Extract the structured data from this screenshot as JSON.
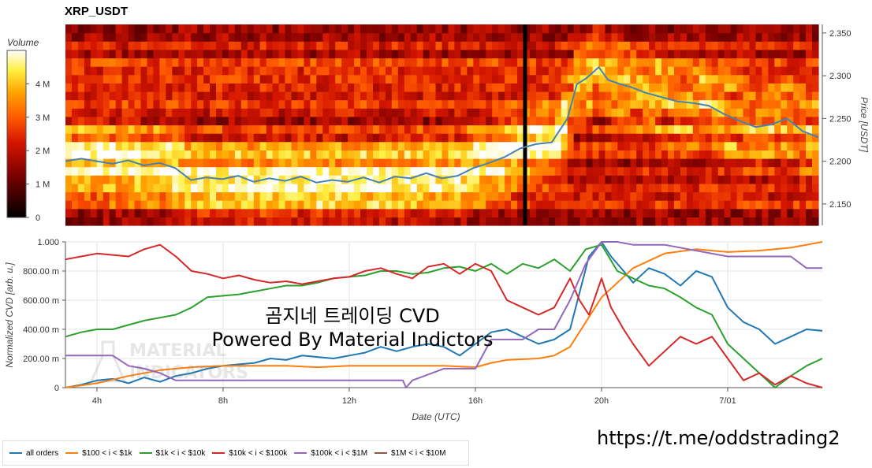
{
  "title": "XRP_USDT",
  "overlay_title": "곰지네 트레이딩 CVD",
  "overlay_subtitle": "Powered By Material Indictors",
  "watermark": "MATERIAL INDICATORS",
  "url_text": "https://t.me/oddstrading2",
  "colors": {
    "all_orders": "#1f77b4",
    "r100_1k": "#ff7f0e",
    "r1k_10k": "#2ca02c",
    "r10k_100k": "#d62728",
    "r100k_1m": "#9467bd",
    "r1m_10m": "#8c564b"
  },
  "chart_data": [
    {
      "type": "heatmap",
      "title": "XRP_USDT",
      "ylabel": "Price [USDT]",
      "ylim": [
        2.125,
        2.36
      ],
      "y_ticks": [
        "2.350",
        "2.300",
        "2.250",
        "2.200",
        "2.150"
      ],
      "y_tick_values": [
        2.35,
        2.3,
        2.25,
        2.2,
        2.15
      ],
      "colorbar": {
        "label": "Volume",
        "ticks": [
          "4 M",
          "3 M",
          "2 M",
          "1 M",
          "0"
        ],
        "tick_values": [
          4,
          3,
          2,
          1,
          0
        ],
        "range": [
          0,
          5
        ]
      },
      "x_range_hours": [
        3,
        27
      ],
      "gap_hour": 17.65,
      "price_line": [
        [
          3.0,
          2.2
        ],
        [
          3.5,
          2.203
        ],
        [
          4.0,
          2.2
        ],
        [
          4.5,
          2.197
        ],
        [
          5.0,
          2.201
        ],
        [
          5.5,
          2.195
        ],
        [
          6.0,
          2.198
        ],
        [
          6.5,
          2.192
        ],
        [
          7.0,
          2.178
        ],
        [
          7.5,
          2.181
        ],
        [
          8.0,
          2.179
        ],
        [
          8.5,
          2.183
        ],
        [
          9.0,
          2.176
        ],
        [
          9.5,
          2.18
        ],
        [
          10.0,
          2.177
        ],
        [
          10.5,
          2.182
        ],
        [
          11.0,
          2.175
        ],
        [
          11.5,
          2.178
        ],
        [
          12.0,
          2.176
        ],
        [
          12.5,
          2.181
        ],
        [
          13.0,
          2.175
        ],
        [
          13.5,
          2.182
        ],
        [
          14.0,
          2.18
        ],
        [
          14.5,
          2.186
        ],
        [
          15.0,
          2.18
        ],
        [
          15.5,
          2.183
        ],
        [
          16.0,
          2.192
        ],
        [
          16.5,
          2.198
        ],
        [
          17.0,
          2.205
        ],
        [
          17.5,
          2.215
        ],
        [
          18.0,
          2.22
        ],
        [
          18.5,
          2.222
        ],
        [
          19.0,
          2.25
        ],
        [
          19.3,
          2.29
        ],
        [
          19.6,
          2.297
        ],
        [
          20.0,
          2.31
        ],
        [
          20.3,
          2.295
        ],
        [
          20.7,
          2.29
        ],
        [
          21.0,
          2.287
        ],
        [
          21.5,
          2.28
        ],
        [
          22.0,
          2.275
        ],
        [
          22.5,
          2.27
        ],
        [
          23.0,
          2.268
        ],
        [
          23.5,
          2.265
        ],
        [
          24.0,
          2.255
        ],
        [
          24.5,
          2.247
        ],
        [
          25.0,
          2.24
        ],
        [
          25.5,
          2.243
        ],
        [
          26.0,
          2.25
        ],
        [
          26.5,
          2.235
        ],
        [
          27.0,
          2.228
        ]
      ],
      "note_units": "price in USDT, x in hours UTC"
    },
    {
      "type": "line",
      "xlabel": "Date (UTC)",
      "ylabel": "Normalized CVD [arb. u.]",
      "ylim": [
        0,
        1
      ],
      "y_ticks": [
        "1.000",
        "800.00 m",
        "600.00 m",
        "400.00 m",
        "200.00 m",
        "0"
      ],
      "y_tick_values": [
        1,
        0.8,
        0.6,
        0.4,
        0.2,
        0
      ],
      "x_ticks": [
        "4h",
        "8h",
        "12h",
        "16h",
        "20h",
        "7/01"
      ],
      "x_tick_values": [
        4,
        8,
        12,
        16,
        20,
        24
      ],
      "x_range": [
        3,
        27
      ],
      "grid": true,
      "legend_position": "bottom-left",
      "series": [
        {
          "name": "all orders",
          "color_key": "all_orders",
          "points": [
            [
              3,
              0.0
            ],
            [
              3.5,
              0.02
            ],
            [
              4,
              0.05
            ],
            [
              4.5,
              0.06
            ],
            [
              5,
              0.03
            ],
            [
              5.5,
              0.07
            ],
            [
              6,
              0.04
            ],
            [
              6.5,
              0.08
            ],
            [
              7,
              0.1
            ],
            [
              7.5,
              0.13
            ],
            [
              8,
              0.15
            ],
            [
              8.5,
              0.16
            ],
            [
              9,
              0.17
            ],
            [
              9.5,
              0.2
            ],
            [
              10,
              0.19
            ],
            [
              10.5,
              0.22
            ],
            [
              11,
              0.21
            ],
            [
              11.5,
              0.2
            ],
            [
              12,
              0.22
            ],
            [
              12.5,
              0.24
            ],
            [
              13,
              0.28
            ],
            [
              13.5,
              0.25
            ],
            [
              14,
              0.28
            ],
            [
              14.5,
              0.3
            ],
            [
              15,
              0.28
            ],
            [
              15.5,
              0.22
            ],
            [
              16,
              0.3
            ],
            [
              16.5,
              0.38
            ],
            [
              17,
              0.4
            ],
            [
              17.5,
              0.35
            ],
            [
              18,
              0.3
            ],
            [
              18.5,
              0.33
            ],
            [
              19,
              0.4
            ],
            [
              19.3,
              0.65
            ],
            [
              19.6,
              0.9
            ],
            [
              20,
              1.0
            ],
            [
              20.3,
              0.9
            ],
            [
              20.7,
              0.8
            ],
            [
              21,
              0.72
            ],
            [
              21.5,
              0.82
            ],
            [
              22,
              0.78
            ],
            [
              22.5,
              0.7
            ],
            [
              23,
              0.8
            ],
            [
              23.5,
              0.76
            ],
            [
              24,
              0.55
            ],
            [
              24.5,
              0.45
            ],
            [
              25,
              0.4
            ],
            [
              25.5,
              0.3
            ],
            [
              26,
              0.35
            ],
            [
              26.5,
              0.4
            ],
            [
              27,
              0.39
            ]
          ]
        },
        {
          "name": "$100 < i < $1k",
          "color_key": "r100_1k",
          "points": [
            [
              3,
              0.0
            ],
            [
              4,
              0.03
            ],
            [
              5,
              0.08
            ],
            [
              6,
              0.12
            ],
            [
              7,
              0.14
            ],
            [
              8,
              0.15
            ],
            [
              9,
              0.15
            ],
            [
              10,
              0.15
            ],
            [
              11,
              0.14
            ],
            [
              12,
              0.15
            ],
            [
              13,
              0.15
            ],
            [
              14,
              0.15
            ],
            [
              15,
              0.15
            ],
            [
              16,
              0.14
            ],
            [
              16.5,
              0.17
            ],
            [
              17,
              0.19
            ],
            [
              18,
              0.2
            ],
            [
              18.5,
              0.22
            ],
            [
              19,
              0.28
            ],
            [
              19.5,
              0.45
            ],
            [
              20,
              0.62
            ],
            [
              20.5,
              0.72
            ],
            [
              21,
              0.82
            ],
            [
              22,
              0.92
            ],
            [
              23,
              0.95
            ],
            [
              24,
              0.93
            ],
            [
              25,
              0.94
            ],
            [
              26,
              0.96
            ],
            [
              27,
              1.0
            ]
          ]
        },
        {
          "name": "$1k < i < $10k",
          "color_key": "r1k_10k",
          "points": [
            [
              3,
              0.35
            ],
            [
              3.5,
              0.38
            ],
            [
              4,
              0.4
            ],
            [
              4.5,
              0.4
            ],
            [
              5,
              0.43
            ],
            [
              5.5,
              0.46
            ],
            [
              6,
              0.48
            ],
            [
              6.5,
              0.5
            ],
            [
              7,
              0.55
            ],
            [
              7.5,
              0.62
            ],
            [
              8,
              0.63
            ],
            [
              8.5,
              0.64
            ],
            [
              9,
              0.66
            ],
            [
              9.5,
              0.68
            ],
            [
              10,
              0.7
            ],
            [
              10.5,
              0.7
            ],
            [
              11,
              0.72
            ],
            [
              11.5,
              0.75
            ],
            [
              12,
              0.76
            ],
            [
              12.5,
              0.77
            ],
            [
              13,
              0.8
            ],
            [
              13.5,
              0.8
            ],
            [
              14,
              0.78
            ],
            [
              14.5,
              0.79
            ],
            [
              15,
              0.82
            ],
            [
              15.5,
              0.83
            ],
            [
              16,
              0.8
            ],
            [
              16.5,
              0.85
            ],
            [
              17,
              0.78
            ],
            [
              17.5,
              0.85
            ],
            [
              18,
              0.82
            ],
            [
              18.5,
              0.88
            ],
            [
              19,
              0.8
            ],
            [
              19.5,
              0.95
            ],
            [
              20,
              0.98
            ],
            [
              20.5,
              0.8
            ],
            [
              21,
              0.75
            ],
            [
              21.5,
              0.7
            ],
            [
              22,
              0.68
            ],
            [
              22.5,
              0.62
            ],
            [
              23,
              0.55
            ],
            [
              23.5,
              0.5
            ],
            [
              24,
              0.3
            ],
            [
              24.5,
              0.2
            ],
            [
              25,
              0.1
            ],
            [
              25.5,
              0.0
            ],
            [
              26,
              0.08
            ],
            [
              26.5,
              0.15
            ],
            [
              27,
              0.2
            ]
          ]
        },
        {
          "name": "$10k < i < $100k",
          "color_key": "r10k_100k",
          "points": [
            [
              3,
              0.88
            ],
            [
              3.5,
              0.9
            ],
            [
              4,
              0.92
            ],
            [
              4.5,
              0.91
            ],
            [
              5,
              0.9
            ],
            [
              5.5,
              0.95
            ],
            [
              6,
              0.98
            ],
            [
              6.5,
              0.9
            ],
            [
              7,
              0.8
            ],
            [
              7.5,
              0.78
            ],
            [
              8,
              0.75
            ],
            [
              8.5,
              0.77
            ],
            [
              9,
              0.74
            ],
            [
              9.5,
              0.72
            ],
            [
              10,
              0.73
            ],
            [
              10.5,
              0.71
            ],
            [
              11,
              0.73
            ],
            [
              11.5,
              0.75
            ],
            [
              12,
              0.76
            ],
            [
              12.5,
              0.8
            ],
            [
              13,
              0.82
            ],
            [
              13.5,
              0.78
            ],
            [
              14,
              0.75
            ],
            [
              14.5,
              0.83
            ],
            [
              15,
              0.85
            ],
            [
              15.5,
              0.78
            ],
            [
              16,
              0.85
            ],
            [
              16.5,
              0.8
            ],
            [
              17,
              0.6
            ],
            [
              17.5,
              0.55
            ],
            [
              18,
              0.5
            ],
            [
              18.5,
              0.55
            ],
            [
              19,
              0.75
            ],
            [
              19.3,
              0.6
            ],
            [
              19.6,
              0.5
            ],
            [
              20,
              0.75
            ],
            [
              20.3,
              0.55
            ],
            [
              20.7,
              0.4
            ],
            [
              21,
              0.3
            ],
            [
              21.5,
              0.15
            ],
            [
              22,
              0.25
            ],
            [
              22.5,
              0.35
            ],
            [
              23,
              0.3
            ],
            [
              23.5,
              0.35
            ],
            [
              24,
              0.2
            ],
            [
              24.5,
              0.05
            ],
            [
              25,
              0.1
            ],
            [
              25.5,
              0.02
            ],
            [
              26,
              0.08
            ],
            [
              26.5,
              0.03
            ],
            [
              27,
              0.0
            ]
          ]
        },
        {
          "name": "$100k < i < $1M",
          "color_key": "r100k_1m",
          "points": [
            [
              3,
              0.22
            ],
            [
              4,
              0.22
            ],
            [
              4.5,
              0.22
            ],
            [
              5,
              0.15
            ],
            [
              5.5,
              0.13
            ],
            [
              6,
              0.1
            ],
            [
              6.5,
              0.05
            ],
            [
              7,
              0.05
            ],
            [
              8,
              0.05
            ],
            [
              9,
              0.05
            ],
            [
              10,
              0.05
            ],
            [
              11,
              0.05
            ],
            [
              12,
              0.05
            ],
            [
              13,
              0.05
            ],
            [
              13.7,
              0.05
            ],
            [
              13.8,
              0.0
            ],
            [
              14,
              0.05
            ],
            [
              15,
              0.13
            ],
            [
              16,
              0.13
            ],
            [
              16.5,
              0.33
            ],
            [
              17,
              0.33
            ],
            [
              17.5,
              0.33
            ],
            [
              18,
              0.4
            ],
            [
              18.5,
              0.4
            ],
            [
              19,
              0.6
            ],
            [
              19.5,
              0.85
            ],
            [
              20,
              1.0
            ],
            [
              20.5,
              1.0
            ],
            [
              21,
              0.98
            ],
            [
              22,
              0.98
            ],
            [
              23,
              0.94
            ],
            [
              24,
              0.9
            ],
            [
              25,
              0.9
            ],
            [
              26,
              0.9
            ],
            [
              26.5,
              0.82
            ],
            [
              27,
              0.82
            ]
          ]
        },
        {
          "name": "$1M < i < $10M",
          "color_key": "r1m_10m",
          "points": []
        }
      ]
    }
  ]
}
